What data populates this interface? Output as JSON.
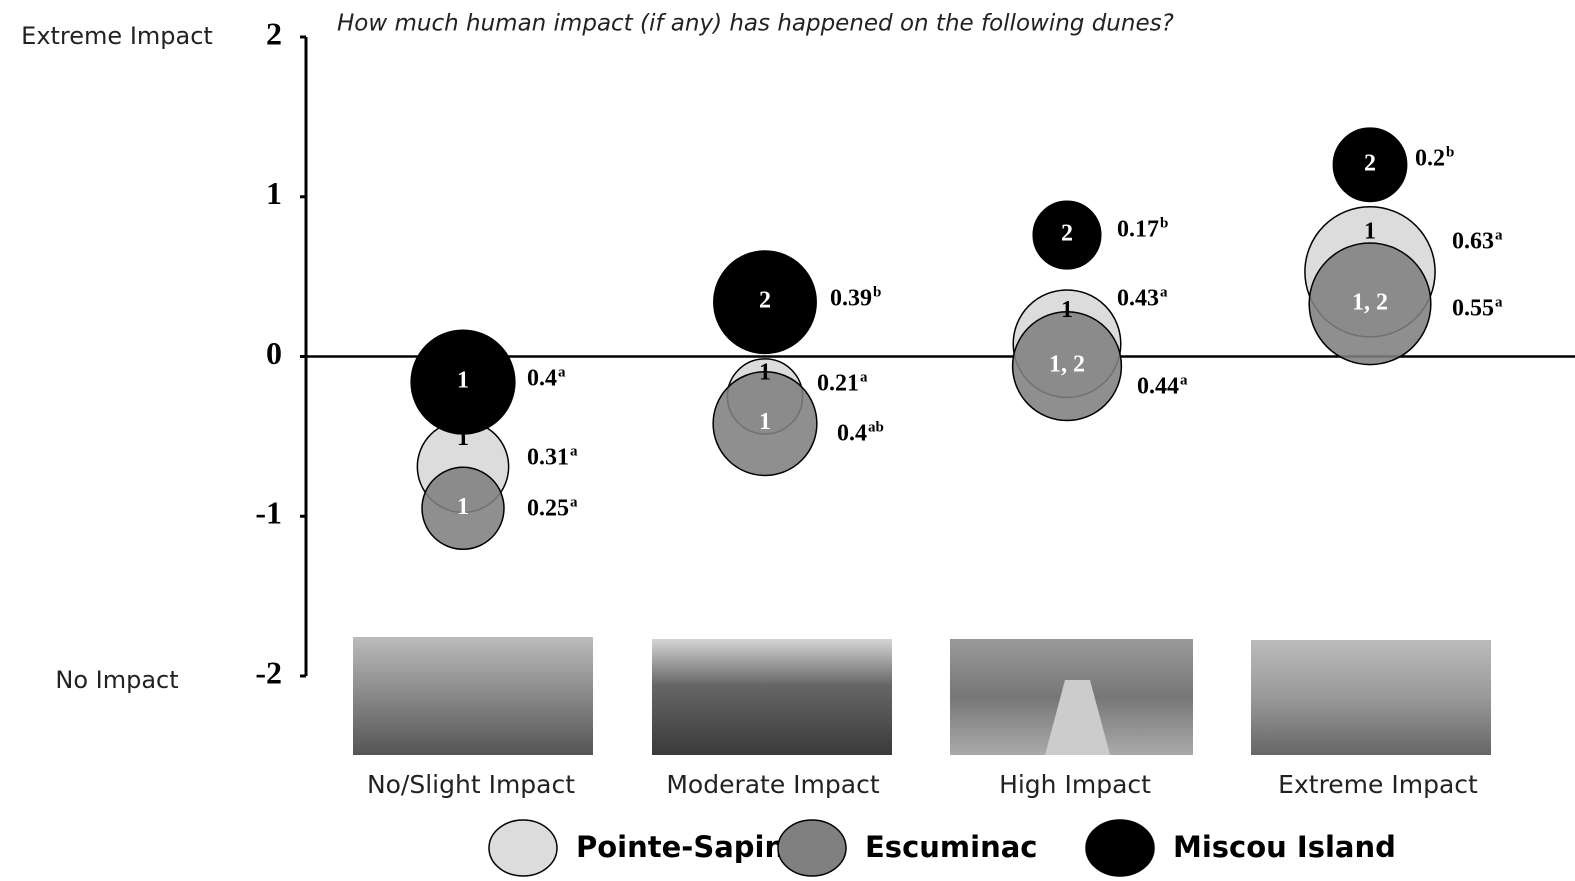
{
  "chart_data": {
    "type": "bubble",
    "title": "How much human impact (if any) has happened on the following dunes?",
    "y_top_label": "Extreme Impact",
    "y_bottom_label": "No Impact",
    "categories": [
      "No/Slight Impact",
      "Moderate Impact",
      "High Impact",
      "Extreme Impact"
    ],
    "ylim": [
      -2,
      2
    ],
    "yticks": [
      2,
      1,
      0,
      -1,
      -2
    ],
    "series": [
      {
        "name": "Pointe-Sapin",
        "color": "#dcdcdc",
        "values": [
          -0.69,
          -0.25,
          0.08,
          0.53
        ],
        "sizes": [
          0.31,
          0.21,
          0.43,
          0.63
        ],
        "letters": [
          "a",
          "a",
          "a",
          "a"
        ],
        "groups": [
          "1",
          "1",
          "1",
          "1"
        ]
      },
      {
        "name": "Escuminac",
        "color": "#808080",
        "values": [
          -0.95,
          -0.42,
          -0.06,
          0.33
        ],
        "sizes": [
          0.25,
          0.4,
          0.44,
          0.55
        ],
        "letters": [
          "a",
          "ab",
          "a",
          "a"
        ],
        "groups": [
          "1",
          "1",
          "1, 2",
          "1, 2"
        ]
      },
      {
        "name": "Miscou Island",
        "color": "#000000",
        "values": [
          -0.16,
          0.34,
          0.76,
          1.2
        ],
        "sizes": [
          0.4,
          0.39,
          0.17,
          0.2
        ],
        "letters": [
          "a",
          "b",
          "b",
          "b"
        ],
        "groups": [
          "1",
          "2",
          "2",
          "2"
        ]
      }
    ]
  }
}
